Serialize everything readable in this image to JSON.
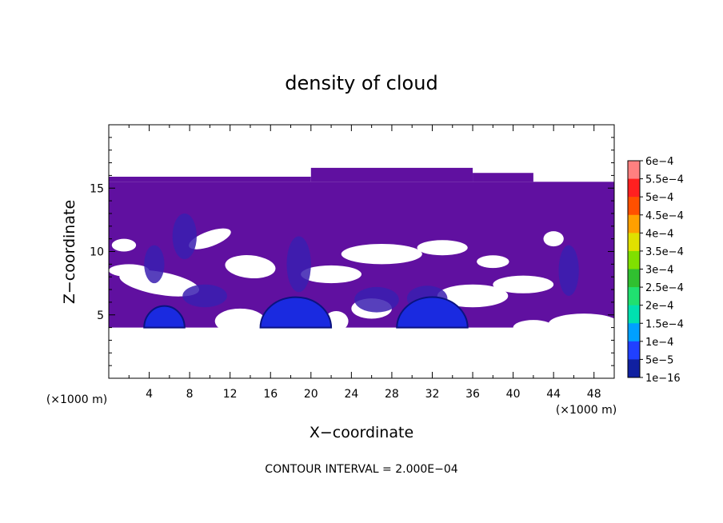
{
  "chart_data": {
    "type": "heatmap",
    "title": "density of cloud",
    "xlabel": "X−coordinate",
    "ylabel": "Z−coordinate",
    "x_unit": "(×1000 m)",
    "y_unit": "(×1000 m)",
    "footer": "CONTOUR INTERVAL = 2.000E−04",
    "xlim": [
      0,
      50
    ],
    "ylim": [
      0,
      20
    ],
    "x_ticks": [
      4,
      8,
      12,
      16,
      20,
      24,
      28,
      32,
      36,
      40,
      44,
      48
    ],
    "y_ticks": [
      5,
      10,
      15
    ],
    "cloud_layer": {
      "bottom_km": 4,
      "top_km": 15.5,
      "base_level": "1e−16"
    },
    "cores": [
      {
        "x_km": 5.5,
        "z_km": 4.0,
        "peak": "1e−4"
      },
      {
        "x_km": 18.5,
        "z_km": 4.0,
        "peak": "1.5e−4"
      },
      {
        "x_km": 32.0,
        "z_km": 4.0,
        "peak": "1.5e−4"
      }
    ],
    "colorbar": {
      "labels": [
        "6e−4",
        "5.5e−4",
        "5e−4",
        "4.5e−4",
        "4e−4",
        "3.5e−4",
        "3e−4",
        "2.5e−4",
        "2e−4",
        "1.5e−4",
        "1e−4",
        "5e−5",
        "1e−16"
      ],
      "colors": [
        "#ff8080",
        "#ff2020",
        "#ff5000",
        "#ffa000",
        "#e0e000",
        "#80e000",
        "#30c030",
        "#20e070",
        "#00e0b0",
        "#00a0ff",
        "#2040ff",
        "#1020a0",
        "#6010a0"
      ]
    },
    "colors": {
      "base_fill": "#6010a0",
      "low_fill": "#3a1eb0",
      "core_fill": "#1a2ae0",
      "core_edge": "#0a1280"
    }
  }
}
